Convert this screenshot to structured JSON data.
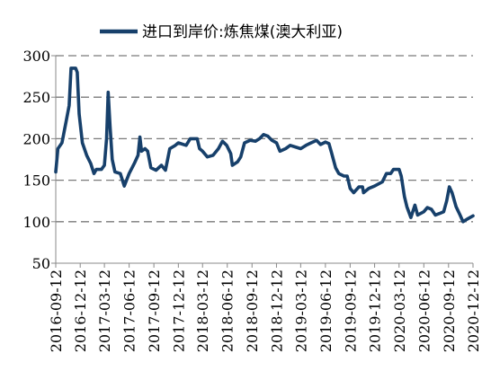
{
  "chart_data": {
    "type": "line",
    "title": "",
    "xlabel": "",
    "ylabel": "",
    "ylim": [
      50,
      300
    ],
    "yticks": [
      50,
      100,
      150,
      200,
      250,
      300
    ],
    "grid": "horizontal-dashed",
    "legend_position": "top",
    "x_tick_labels": [
      "2016-09-12",
      "2016-12-12",
      "2017-03-12",
      "2017-06-12",
      "2017-09-12",
      "2017-12-12",
      "2018-03-12",
      "2018-06-12",
      "2018-09-12",
      "2018-12-12",
      "2019-03-12",
      "2019-06-12",
      "2019-09-12",
      "2019-12-12",
      "2020-03-12",
      "2020-06-12",
      "2020-09-12",
      "2020-12-12"
    ],
    "series": [
      {
        "name": "进口到岸价:炼焦煤(澳大利亚)",
        "color": "#17406b",
        "points": [
          [
            "2016-09-12",
            160
          ],
          [
            "2016-09-20",
            188
          ],
          [
            "2016-10-05",
            195
          ],
          [
            "2016-10-20",
            220
          ],
          [
            "2016-11-01",
            240
          ],
          [
            "2016-11-08",
            285
          ],
          [
            "2016-11-25",
            285
          ],
          [
            "2016-12-01",
            280
          ],
          [
            "2016-12-08",
            230
          ],
          [
            "2016-12-20",
            195
          ],
          [
            "2017-01-05",
            180
          ],
          [
            "2017-01-20",
            170
          ],
          [
            "2017-02-01",
            158
          ],
          [
            "2017-02-10",
            163
          ],
          [
            "2017-03-01",
            163
          ],
          [
            "2017-03-12",
            168
          ],
          [
            "2017-03-20",
            200
          ],
          [
            "2017-03-26",
            256
          ],
          [
            "2017-04-02",
            215
          ],
          [
            "2017-04-10",
            175
          ],
          [
            "2017-04-20",
            160
          ],
          [
            "2017-05-10",
            158
          ],
          [
            "2017-05-25",
            143
          ],
          [
            "2017-06-12",
            158
          ],
          [
            "2017-07-01",
            170
          ],
          [
            "2017-07-15",
            180
          ],
          [
            "2017-07-22",
            202
          ],
          [
            "2017-07-28",
            185
          ],
          [
            "2017-08-10",
            188
          ],
          [
            "2017-08-20",
            185
          ],
          [
            "2017-09-01",
            165
          ],
          [
            "2017-09-20",
            162
          ],
          [
            "2017-10-10",
            168
          ],
          [
            "2017-10-25",
            162
          ],
          [
            "2017-11-10",
            188
          ],
          [
            "2017-12-01",
            192
          ],
          [
            "2017-12-12",
            195
          ],
          [
            "2018-01-10",
            192
          ],
          [
            "2018-01-25",
            200
          ],
          [
            "2018-02-20",
            200
          ],
          [
            "2018-03-01",
            188
          ],
          [
            "2018-03-12",
            185
          ],
          [
            "2018-03-30",
            178
          ],
          [
            "2018-04-20",
            180
          ],
          [
            "2018-05-10",
            188
          ],
          [
            "2018-05-25",
            197
          ],
          [
            "2018-06-10",
            192
          ],
          [
            "2018-06-25",
            182
          ],
          [
            "2018-07-01",
            168
          ],
          [
            "2018-07-20",
            172
          ],
          [
            "2018-08-01",
            178
          ],
          [
            "2018-08-15",
            195
          ],
          [
            "2018-09-05",
            198
          ],
          [
            "2018-09-25",
            197
          ],
          [
            "2018-10-10",
            200
          ],
          [
            "2018-10-25",
            205
          ],
          [
            "2018-11-10",
            203
          ],
          [
            "2018-11-25",
            198
          ],
          [
            "2018-12-12",
            195
          ],
          [
            "2018-12-25",
            185
          ],
          [
            "2019-01-15",
            188
          ],
          [
            "2019-02-01",
            192
          ],
          [
            "2019-02-20",
            190
          ],
          [
            "2019-03-12",
            188
          ],
          [
            "2019-04-01",
            192
          ],
          [
            "2019-04-20",
            195
          ],
          [
            "2019-05-10",
            198
          ],
          [
            "2019-05-25",
            193
          ],
          [
            "2019-06-12",
            196
          ],
          [
            "2019-06-25",
            194
          ],
          [
            "2019-07-05",
            183
          ],
          [
            "2019-07-20",
            165
          ],
          [
            "2019-08-01",
            158
          ],
          [
            "2019-08-20",
            155
          ],
          [
            "2019-09-01",
            155
          ],
          [
            "2019-09-12",
            140
          ],
          [
            "2019-09-25",
            135
          ],
          [
            "2019-10-15",
            142
          ],
          [
            "2019-10-28",
            142
          ],
          [
            "2019-11-01",
            135
          ],
          [
            "2019-11-20",
            140
          ],
          [
            "2019-12-12",
            143
          ],
          [
            "2020-01-10",
            148
          ],
          [
            "2020-01-25",
            158
          ],
          [
            "2020-02-10",
            158
          ],
          [
            "2020-02-20",
            163
          ],
          [
            "2020-03-12",
            163
          ],
          [
            "2020-03-20",
            155
          ],
          [
            "2020-04-01",
            130
          ],
          [
            "2020-04-10",
            118
          ],
          [
            "2020-04-25",
            105
          ],
          [
            "2020-05-10",
            120
          ],
          [
            "2020-05-20",
            108
          ],
          [
            "2020-06-12",
            112
          ],
          [
            "2020-06-25",
            117
          ],
          [
            "2020-07-10",
            115
          ],
          [
            "2020-07-25",
            108
          ],
          [
            "2020-08-10",
            110
          ],
          [
            "2020-08-25",
            112
          ],
          [
            "2020-09-05",
            125
          ],
          [
            "2020-09-15",
            142
          ],
          [
            "2020-09-25",
            135
          ],
          [
            "2020-10-10",
            118
          ],
          [
            "2020-10-25",
            108
          ],
          [
            "2020-11-05",
            100
          ],
          [
            "2020-11-20",
            103
          ],
          [
            "2020-12-12",
            107
          ]
        ]
      }
    ]
  }
}
